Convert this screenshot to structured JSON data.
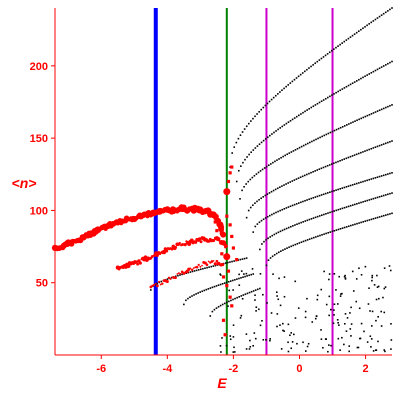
{
  "chart_data": {
    "type": "scatter",
    "xlabel": "E",
    "ylabel": "<n>",
    "xlim": [
      -7.4,
      2.8
    ],
    "ylim": [
      0,
      240
    ],
    "x_ticks": [
      -6,
      -4,
      -2,
      0,
      2
    ],
    "x_tick_labels": [
      "-6",
      "-4",
      "-2",
      "0",
      "2"
    ],
    "y_ticks": [
      50,
      100,
      150,
      200
    ],
    "y_tick_labels": [
      "50",
      "100",
      "150",
      "200"
    ],
    "grid": false,
    "vlines": [
      {
        "x": -4.35,
        "color": "#0000ff"
      },
      {
        "x": -2.2,
        "color": "#008000"
      },
      {
        "x": -1.0,
        "color": "#cc00cc"
      },
      {
        "x": 1.0,
        "color": "#cc00cc"
      }
    ],
    "colors": {
      "axis": "#ff0000",
      "red_series": "#ff0000",
      "black_series": "#000000"
    },
    "red_band_1": [
      [
        -7.4,
        73
      ],
      [
        -7.2,
        75
      ],
      [
        -7.0,
        77
      ],
      [
        -6.8,
        79
      ],
      [
        -6.6,
        81
      ],
      [
        -6.4,
        83
      ],
      [
        -6.2,
        85
      ],
      [
        -6.0,
        87
      ],
      [
        -5.8,
        89
      ],
      [
        -5.6,
        91
      ],
      [
        -5.4,
        92
      ],
      [
        -5.2,
        94
      ],
      [
        -5.0,
        95
      ],
      [
        -4.8,
        96
      ],
      [
        -4.6,
        97
      ],
      [
        -4.4,
        98
      ],
      [
        -4.2,
        99
      ],
      [
        -4.0,
        100
      ],
      [
        -3.8,
        100
      ],
      [
        -3.6,
        101
      ],
      [
        -3.4,
        101
      ],
      [
        -3.2,
        101
      ],
      [
        -3.0,
        100
      ],
      [
        -2.8,
        99
      ],
      [
        -2.6,
        97
      ],
      [
        -2.5,
        94
      ],
      [
        -2.4,
        90
      ],
      [
        -2.35,
        86
      ],
      [
        -2.3,
        82
      ]
    ],
    "red_band_2": [
      [
        -5.5,
        60
      ],
      [
        -5.3,
        61
      ],
      [
        -5.1,
        63
      ],
      [
        -4.9,
        64
      ],
      [
        -4.7,
        66
      ],
      [
        -4.5,
        68
      ],
      [
        -4.3,
        70
      ],
      [
        -4.1,
        72
      ],
      [
        -3.9,
        74
      ],
      [
        -3.7,
        76
      ],
      [
        -3.5,
        77
      ],
      [
        -3.3,
        78
      ],
      [
        -3.1,
        79
      ],
      [
        -2.9,
        80
      ],
      [
        -2.7,
        80
      ],
      [
        -2.5,
        80
      ],
      [
        -2.4,
        79
      ],
      [
        -2.3,
        77
      ],
      [
        -2.2,
        75
      ]
    ],
    "red_band_3": [
      [
        -4.5,
        47
      ],
      [
        -4.3,
        49
      ],
      [
        -4.1,
        51
      ],
      [
        -3.9,
        53
      ],
      [
        -3.7,
        55
      ],
      [
        -3.5,
        57
      ],
      [
        -3.3,
        59
      ],
      [
        -3.1,
        61
      ],
      [
        -2.9,
        63
      ],
      [
        -2.7,
        64
      ],
      [
        -2.5,
        64
      ],
      [
        -2.4,
        63
      ],
      [
        -2.3,
        61
      ]
    ],
    "red_isolated": [
      [
        -2.2,
        113
      ],
      [
        -2.15,
        120
      ],
      [
        -2.1,
        126
      ],
      [
        -2.05,
        130
      ],
      [
        -2.2,
        96
      ],
      [
        -2.1,
        90
      ],
      [
        -2.05,
        82
      ],
      [
        -2.0,
        74
      ],
      [
        -1.9,
        66
      ],
      [
        -2.3,
        54
      ],
      [
        -2.2,
        48
      ],
      [
        -2.1,
        40
      ],
      [
        -2.05,
        34
      ],
      [
        -2.3,
        24
      ],
      [
        -2.25,
        14
      ],
      [
        -2.5,
        86
      ],
      [
        -2.55,
        92
      ],
      [
        -2.6,
        98
      ],
      [
        -2.45,
        80
      ],
      [
        -2.35,
        70
      ],
      [
        -2.25,
        68
      ],
      [
        -2.15,
        58
      ]
    ],
    "black_lines": [
      {
        "from": [
          -2.1,
          130
        ],
        "to": [
          2.8,
          240
        ]
      },
      {
        "from": [
          -1.9,
          120
        ],
        "to": [
          2.8,
          203
        ]
      },
      {
        "from": [
          -1.8,
          108
        ],
        "to": [
          2.8,
          173
        ]
      },
      {
        "from": [
          -1.6,
          95
        ],
        "to": [
          2.8,
          148
        ]
      },
      {
        "from": [
          -1.4,
          85
        ],
        "to": [
          2.8,
          126
        ]
      },
      {
        "from": [
          -1.2,
          73
        ],
        "to": [
          2.8,
          112
        ]
      },
      {
        "from": [
          -1.0,
          62
        ],
        "to": [
          2.8,
          98
        ]
      },
      {
        "from": [
          -4.5,
          45
        ],
        "to": [
          -1.6,
          67
        ]
      },
      {
        "from": [
          -3.5,
          35
        ],
        "to": [
          -1.4,
          56
        ]
      },
      {
        "from": [
          -2.7,
          27
        ],
        "to": [
          -1.2,
          46
        ]
      }
    ],
    "black_scatter_seed": 7,
    "black_scatter_count": 190,
    "black_scatter_xrange": [
      -2.4,
      2.8
    ],
    "black_scatter_yrange": [
      2,
      62
    ]
  }
}
